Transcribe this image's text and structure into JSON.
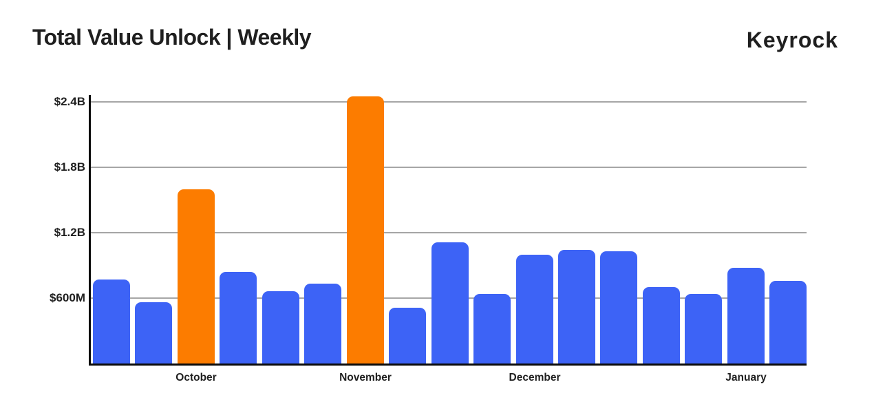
{
  "header": {
    "title": "Total Value Unlock | Weekly",
    "logo": "Keyrock"
  },
  "chart_data": {
    "type": "bar",
    "title": "Total Value Unlock | Weekly",
    "xlabel": "",
    "ylabel": "",
    "unit": "USD, values in millions (estimated from gridlines)",
    "grid": "horizontal",
    "legend": "none",
    "ylim_m": [
      0,
      2500
    ],
    "y_axis": {
      "ticks": [
        {
          "label": "$600M",
          "value_m": 600
        },
        {
          "label": "$1.2B",
          "value_m": 1200
        },
        {
          "label": "$1.8B",
          "value_m": 1800
        },
        {
          "label": "$2.4B",
          "value_m": 2400
        }
      ]
    },
    "colors": {
      "blue": "#3d63f6",
      "orange": "#fc7c00",
      "axis": "#0b0b0b",
      "gridline": "#a6a6a6",
      "text": "#1f1f1f"
    },
    "bars": [
      {
        "week": 1,
        "value_m": 770,
        "color": "blue"
      },
      {
        "week": 2,
        "value_m": 560,
        "color": "blue"
      },
      {
        "week": 3,
        "value_m": 1600,
        "color": "orange"
      },
      {
        "week": 4,
        "value_m": 840,
        "color": "blue"
      },
      {
        "week": 5,
        "value_m": 665,
        "color": "blue"
      },
      {
        "week": 6,
        "value_m": 735,
        "color": "blue"
      },
      {
        "week": 7,
        "value_m": 2450,
        "color": "orange"
      },
      {
        "week": 8,
        "value_m": 510,
        "color": "blue"
      },
      {
        "week": 9,
        "value_m": 1110,
        "color": "blue"
      },
      {
        "week": 10,
        "value_m": 635,
        "color": "blue"
      },
      {
        "week": 11,
        "value_m": 995,
        "color": "blue"
      },
      {
        "week": 12,
        "value_m": 1040,
        "color": "blue"
      },
      {
        "week": 13,
        "value_m": 1030,
        "color": "blue"
      },
      {
        "week": 14,
        "value_m": 700,
        "color": "blue"
      },
      {
        "week": 15,
        "value_m": 635,
        "color": "blue"
      },
      {
        "week": 16,
        "value_m": 880,
        "color": "blue"
      },
      {
        "week": 17,
        "value_m": 760,
        "color": "blue"
      }
    ],
    "month_labels": [
      {
        "label": "October",
        "bar_index": 2
      },
      {
        "label": "November",
        "bar_index": 6
      },
      {
        "label": "December",
        "bar_index": 10
      },
      {
        "label": "January",
        "bar_index": 15
      }
    ]
  }
}
